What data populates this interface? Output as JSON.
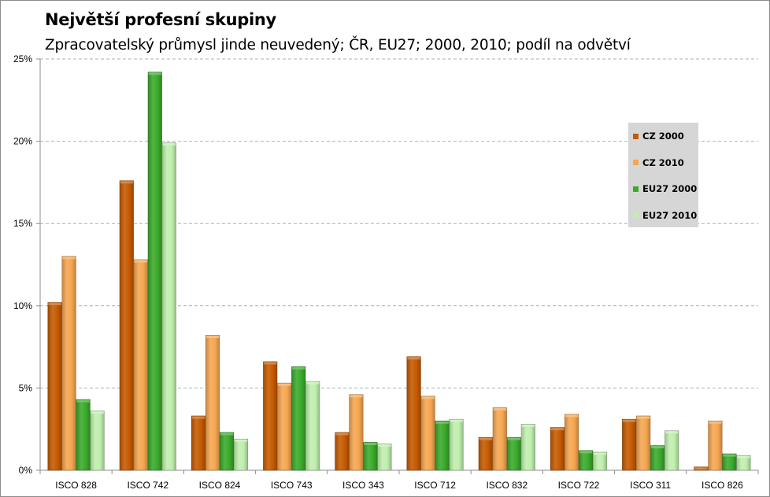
{
  "chart_data": {
    "type": "bar",
    "title": "Největší profesní skupiny",
    "subtitle": "Zpracovatelský průmysl jinde neuvedený; ČR, EU27; 2000, 2010; podíl na odvětví",
    "categories": [
      "ISCO 828",
      "ISCO 742",
      "ISCO 824",
      "ISCO 743",
      "ISCO 343",
      "ISCO 712",
      "ISCO 832",
      "ISCO 722",
      "ISCO 311",
      "ISCO 826"
    ],
    "y_ticks": [
      "0%",
      "5%",
      "10%",
      "15%",
      "20%",
      "25%"
    ],
    "ylim": [
      0,
      25
    ],
    "grid": true,
    "legend_position": "right",
    "series": [
      {
        "name": "CZ 2000",
        "color": "#c55a00",
        "values": [
          10.2,
          17.6,
          3.3,
          6.6,
          2.3,
          6.9,
          2.0,
          2.6,
          3.1,
          0.2
        ]
      },
      {
        "name": "CZ 2010",
        "color": "#f5a650",
        "values": [
          13.0,
          12.8,
          8.2,
          5.3,
          4.6,
          4.5,
          3.8,
          3.4,
          3.3,
          3.0
        ]
      },
      {
        "name": "EU27 2000",
        "color": "#3aaa2a",
        "values": [
          4.3,
          24.2,
          2.3,
          6.3,
          1.7,
          3.0,
          2.0,
          1.2,
          1.5,
          1.0
        ]
      },
      {
        "name": "EU27 2010",
        "color": "#bfefad",
        "values": [
          3.6,
          19.9,
          1.9,
          5.4,
          1.6,
          3.1,
          2.8,
          1.1,
          2.4,
          0.9
        ]
      }
    ]
  }
}
